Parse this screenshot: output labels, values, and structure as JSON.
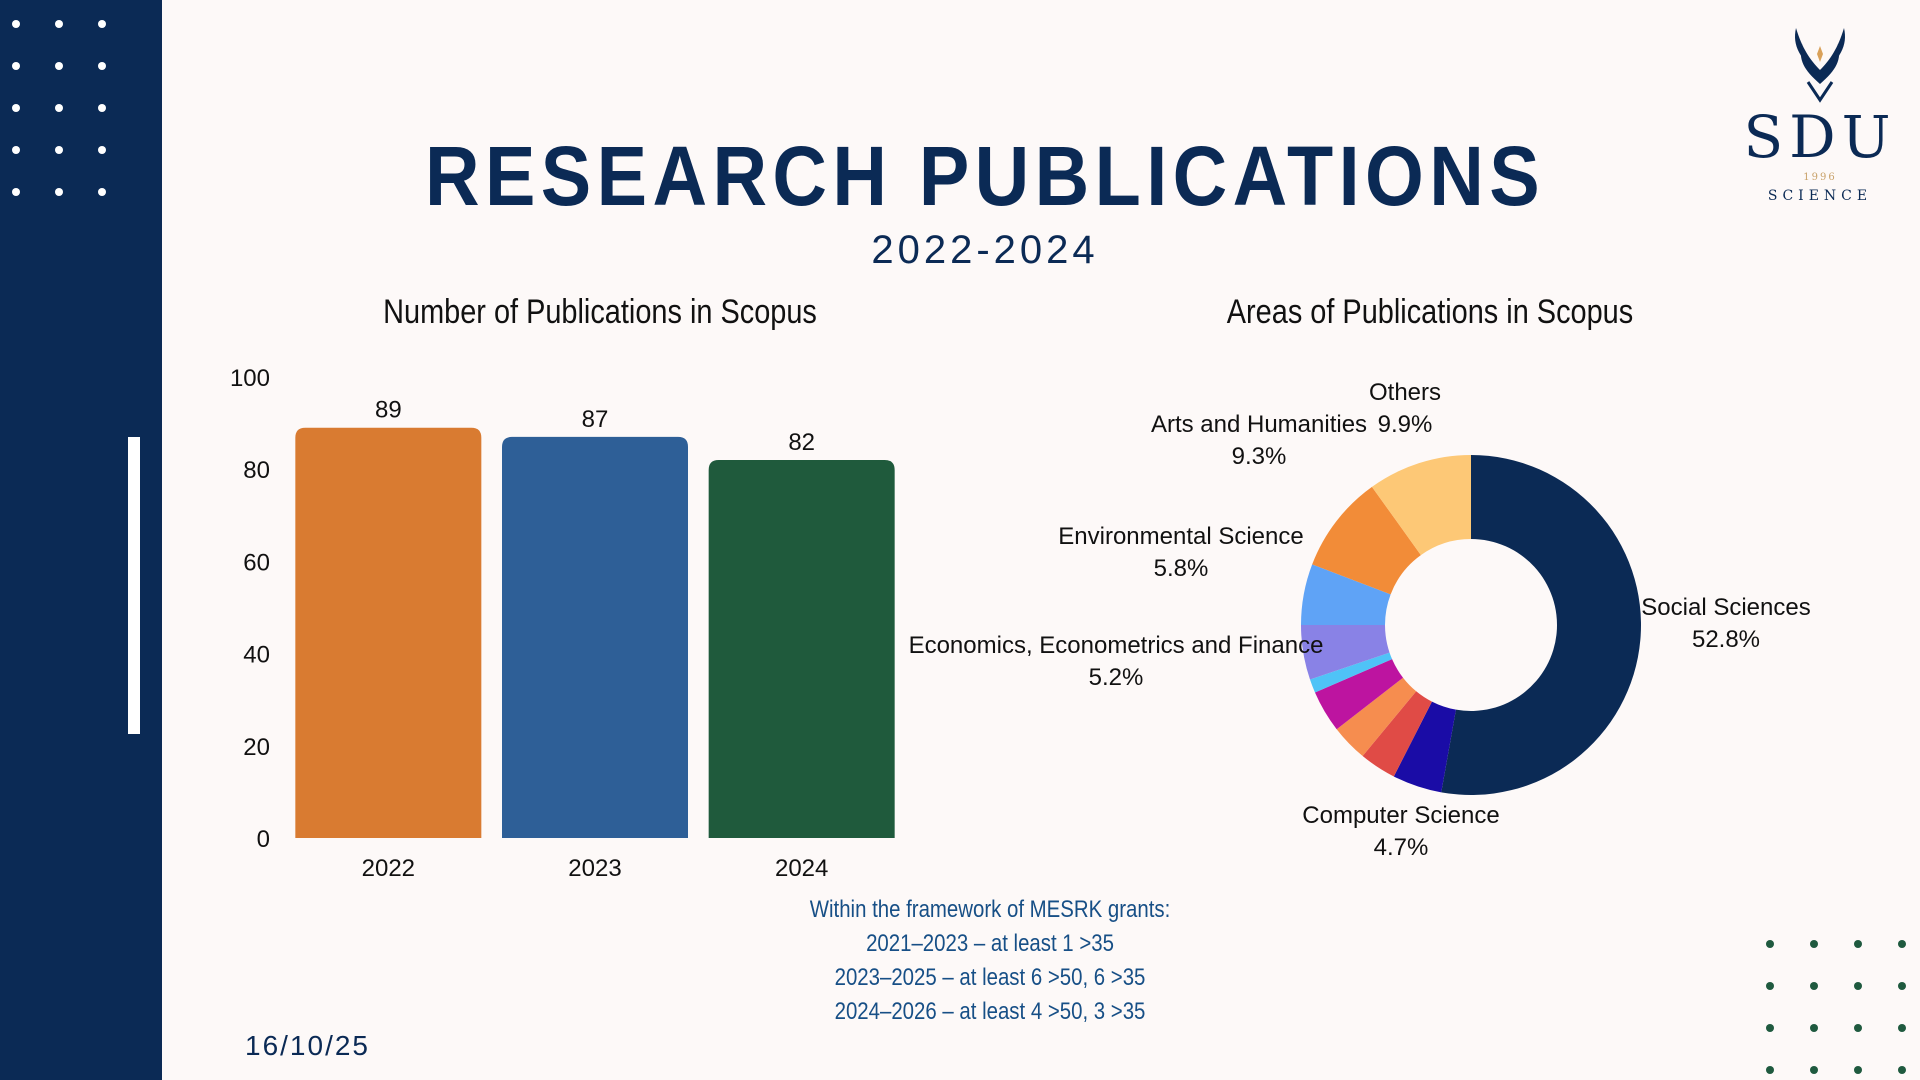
{
  "header": {
    "title": "RESEARCH PUBLICATIONS",
    "subtitle": "2022-2024"
  },
  "logo": {
    "text": "SDU",
    "year": "1996",
    "subtext": "SCIENCE"
  },
  "colors": {
    "navy": "#0b2a55",
    "background": "#fdf9f8",
    "note_blue": "#174f86",
    "dot_green": "#1f5a3f"
  },
  "chart_data": [
    {
      "type": "bar",
      "title": "Number of Publications in Scopus",
      "categories": [
        "2022",
        "2023",
        "2024"
      ],
      "values": [
        89,
        87,
        82
      ],
      "colors": [
        "#d97b31",
        "#2e5f97",
        "#1f5a3c"
      ],
      "ylim": [
        0,
        100
      ],
      "yticks": [
        0,
        20,
        40,
        60,
        80,
        100
      ],
      "xlabel": "",
      "ylabel": "",
      "grid": false
    },
    {
      "type": "pie",
      "style": "donut",
      "title": "Areas of Publications in Scopus",
      "slices": [
        {
          "label": "Social Sciences",
          "pct": 52.8,
          "display": "52.8%",
          "color": "#0b2a55",
          "labeled": true
        },
        {
          "label": "Computer Science",
          "pct": 4.7,
          "display": "4.7%",
          "color": "#1a0ca6",
          "labeled": true
        },
        {
          "label": "",
          "pct": 3.5,
          "display": "",
          "color": "#e04b46",
          "labeled": false
        },
        {
          "label": "",
          "pct": 3.5,
          "display": "",
          "color": "#f68d4f",
          "labeled": false
        },
        {
          "label": "",
          "pct": 4.0,
          "display": "",
          "color": "#bd14a0",
          "labeled": false
        },
        {
          "label": "",
          "pct": 1.3,
          "display": "",
          "color": "#4fc3f7",
          "labeled": false
        },
        {
          "label": "Economics, Econometrics and Finance",
          "pct": 5.2,
          "display": "5.2%",
          "color": "#8982e6",
          "labeled": true
        },
        {
          "label": "Environmental Science",
          "pct": 5.8,
          "display": "5.8%",
          "color": "#5fa3f6",
          "labeled": true
        },
        {
          "label": "Arts and Humanities",
          "pct": 9.3,
          "display": "9.3%",
          "color": "#f28c38",
          "labeled": true
        },
        {
          "label": "Others",
          "pct": 9.9,
          "display": "9.9%",
          "color": "#fdc876",
          "labeled": true
        }
      ]
    }
  ],
  "note": {
    "lines": [
      "Within the framework of MESRK grants:",
      "2021–2023 – at least 1 >35",
      "2023–2025 – at least 6 >50, 6 >35",
      "2024–2026 – at least 4 >50, 3 >35"
    ]
  },
  "date": "16/10/25"
}
